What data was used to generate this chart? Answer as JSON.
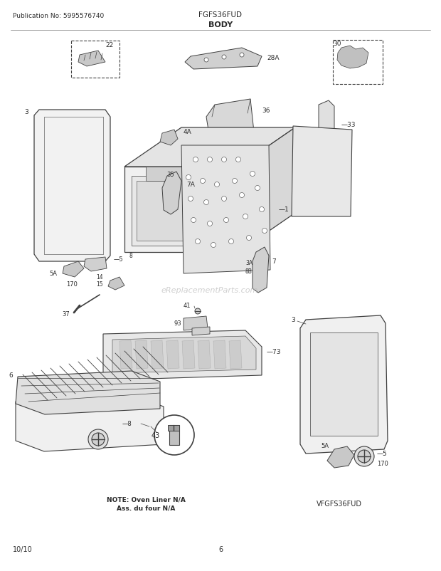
{
  "pub_no": "Publication No: 5995576740",
  "title_model": "FGFS36FUD",
  "title_section": "BODY",
  "footer_left": "10/10",
  "footer_center": "6",
  "footer_right_model": "VFGFS36FUD",
  "note_line1": "NOTE: Oven Liner N/A",
  "note_line2": "Ass. du four N/A",
  "watermark": "eReplacementParts.com",
  "bg_color": "#ffffff",
  "lc": "#404040",
  "tc": "#2a2a2a"
}
